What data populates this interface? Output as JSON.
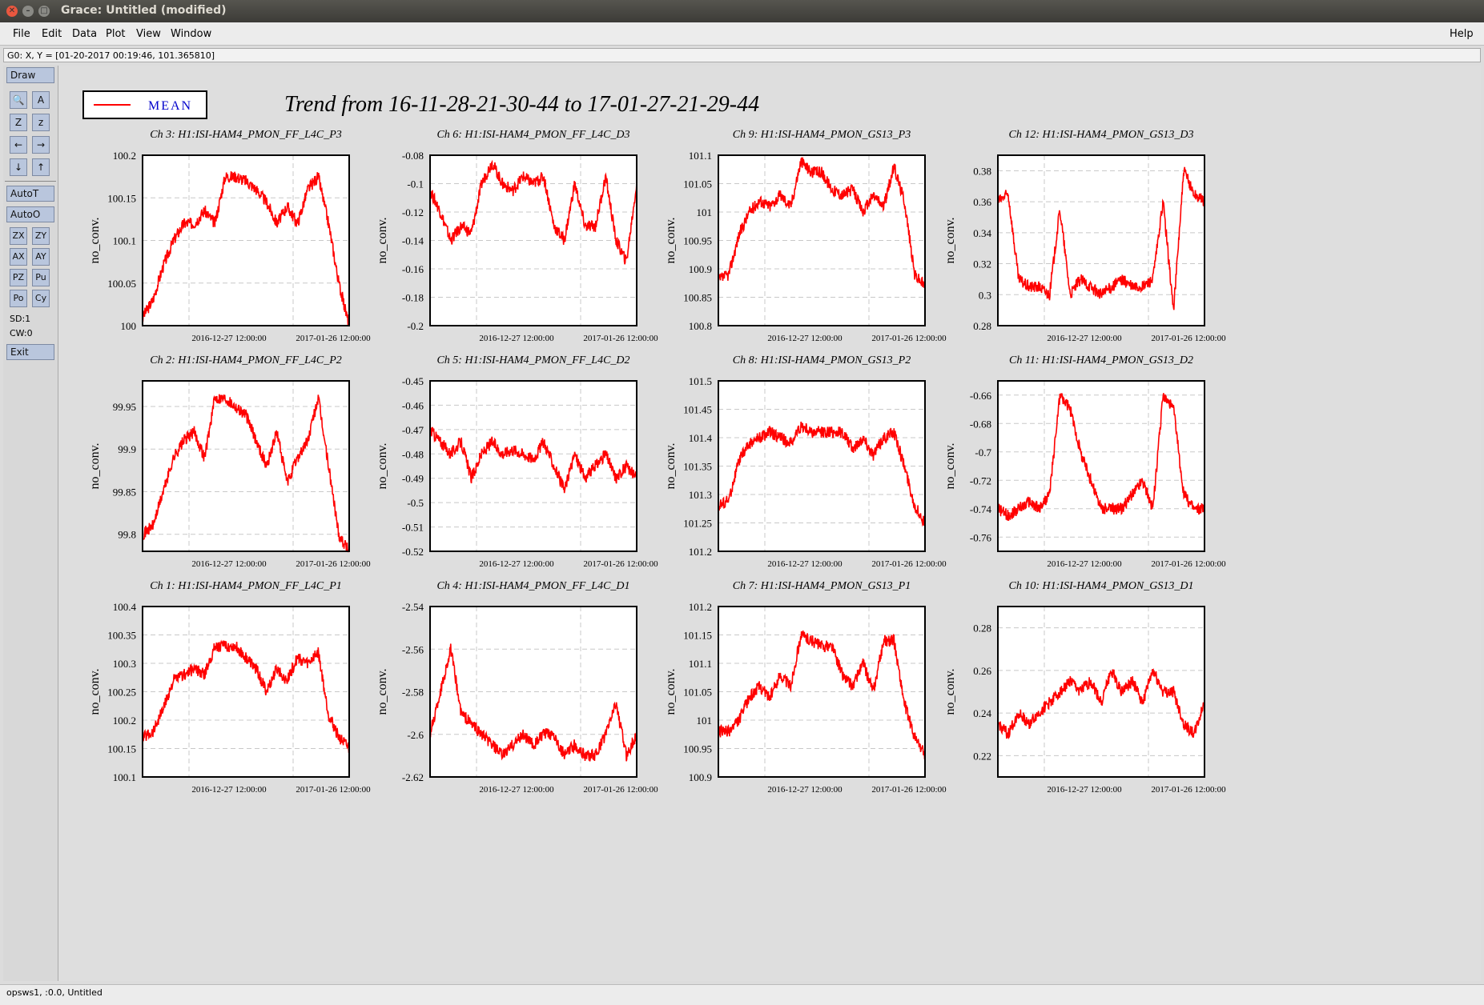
{
  "window": {
    "title": "Grace: Untitled (modified)"
  },
  "menu": {
    "items": [
      "File",
      "Edit",
      "Data",
      "Plot",
      "View",
      "Window"
    ],
    "help": "Help"
  },
  "locator": "G0: X, Y = [01-20-2017 00:19:46, 101.365810]",
  "toolbox": {
    "draw": "Draw",
    "autot": "AutoT",
    "autoo": "AutoO",
    "zoom_buttons": [
      [
        "ZX",
        "ZY"
      ],
      [
        "AX",
        "AY"
      ],
      [
        "PZ",
        "Pu"
      ],
      [
        "Po",
        "Cy"
      ]
    ],
    "sd": "SD:1",
    "cw": "CW:0",
    "exit": "Exit"
  },
  "status": "opsws1, :0.0, Untitled",
  "legend": {
    "label": "MEAN",
    "line_color": "#ff0000",
    "text_color": "#0000cc"
  },
  "page_title": "Trend from 16-11-28-21-30-44 to 17-01-27-21-29-44",
  "colors": {
    "series": "#ff0000"
  },
  "chart_data": [
    {
      "type": "line",
      "title": "Ch 3: H1:ISI-HAM4_PMON_FF_L4C_P3",
      "ylabel": "no_conv.",
      "ylim": [
        100,
        100.2
      ],
      "yticks": [
        "100",
        "100.05",
        "100.1",
        "100.15",
        "100.2"
      ],
      "xticks": [
        "2016-12-27 12:00:00",
        "2017-01-26 12:00:00"
      ],
      "series": [
        {
          "values": [
            100.01,
            100.03,
            100.07,
            100.1,
            100.12,
            100.12,
            100.135,
            100.12,
            100.175,
            100.175,
            100.17,
            100.16,
            100.145,
            100.12,
            100.14,
            100.12,
            100.16,
            100.175,
            100.12,
            100.05,
            100.0
          ]
        }
      ]
    },
    {
      "type": "line",
      "title": "Ch 6: H1:ISI-HAM4_PMON_FF_L4C_D3",
      "ylabel": "no_conv.",
      "ylim": [
        -0.2,
        -0.08
      ],
      "yticks": [
        "-0.2",
        "-0.18",
        "-0.16",
        "-0.14",
        "-0.12",
        "-0.1",
        "-0.08"
      ],
      "xticks": [
        "2016-12-27 12:00:00",
        "2017-01-26 12:00:00"
      ],
      "series": [
        {
          "values": [
            -0.105,
            -0.12,
            -0.14,
            -0.13,
            -0.135,
            -0.1,
            -0.085,
            -0.1,
            -0.105,
            -0.095,
            -0.1,
            -0.095,
            -0.13,
            -0.14,
            -0.1,
            -0.13,
            -0.13,
            -0.095,
            -0.14,
            -0.155,
            -0.1
          ]
        }
      ]
    },
    {
      "type": "line",
      "title": "Ch 9: H1:ISI-HAM4_PMON_GS13_P3",
      "ylabel": "no_conv.",
      "ylim": [
        100.8,
        101.1
      ],
      "yticks": [
        "100.8",
        "100.85",
        "100.9",
        "100.95",
        "101",
        "101.05",
        "101.1"
      ],
      "xticks": [
        "2016-12-27 12:00:00",
        "2017-01-26 12:00:00"
      ],
      "series": [
        {
          "values": [
            100.88,
            100.89,
            100.96,
            101.0,
            101.02,
            101.01,
            101.03,
            101.01,
            101.09,
            101.07,
            101.07,
            101.04,
            101.03,
            101.04,
            101.0,
            101.03,
            101.01,
            101.08,
            101.02,
            100.89,
            100.87
          ]
        }
      ]
    },
    {
      "type": "line",
      "title": "Ch 12: H1:ISI-HAM4_PMON_GS13_D3",
      "ylabel": "no_conv.",
      "ylim": [
        0.28,
        0.39
      ],
      "yticks": [
        "0.28",
        "0.3",
        "0.32",
        "0.34",
        "0.36",
        "0.38"
      ],
      "xticks": [
        "2016-12-27 12:00:00",
        "2017-01-26 12:00:00"
      ],
      "series": [
        {
          "values": [
            0.36,
            0.365,
            0.31,
            0.305,
            0.305,
            0.3,
            0.355,
            0.3,
            0.31,
            0.305,
            0.3,
            0.305,
            0.31,
            0.305,
            0.305,
            0.31,
            0.36,
            0.29,
            0.38,
            0.365,
            0.36
          ]
        }
      ]
    },
    {
      "type": "line",
      "title": "Ch 2: H1:ISI-HAM4_PMON_FF_L4C_P2",
      "ylabel": "no_conv.",
      "ylim": [
        99.78,
        99.98
      ],
      "yticks": [
        "99.8",
        "99.85",
        "99.9",
        "99.95"
      ],
      "xticks": [
        "2016-12-27 12:00:00",
        "2017-01-26 12:00:00"
      ],
      "series": [
        {
          "values": [
            99.8,
            99.81,
            99.85,
            99.89,
            99.91,
            99.92,
            99.89,
            99.96,
            99.96,
            99.95,
            99.94,
            99.91,
            99.88,
            99.92,
            99.86,
            99.89,
            99.91,
            99.96,
            99.88,
            99.8,
            99.78
          ]
        }
      ]
    },
    {
      "type": "line",
      "title": "Ch 5: H1:ISI-HAM4_PMON_FF_L4C_D2",
      "ylabel": "no_conv.",
      "ylim": [
        -0.52,
        -0.45
      ],
      "yticks": [
        "-0.52",
        "-0.51",
        "-0.5",
        "-0.49",
        "-0.48",
        "-0.47",
        "-0.46",
        "-0.45"
      ],
      "xticks": [
        "2016-12-27 12:00:00",
        "2017-01-26 12:00:00"
      ],
      "series": [
        {
          "values": [
            -0.47,
            -0.475,
            -0.48,
            -0.475,
            -0.49,
            -0.48,
            -0.475,
            -0.48,
            -0.478,
            -0.48,
            -0.482,
            -0.475,
            -0.485,
            -0.495,
            -0.48,
            -0.49,
            -0.485,
            -0.48,
            -0.49,
            -0.485,
            -0.49
          ]
        }
      ]
    },
    {
      "type": "line",
      "title": "Ch 8: H1:ISI-HAM4_PMON_GS13_P2",
      "ylabel": "no_conv.",
      "ylim": [
        101.2,
        101.5
      ],
      "yticks": [
        "101.2",
        "101.25",
        "101.3",
        "101.35",
        "101.4",
        "101.45",
        "101.5"
      ],
      "xticks": [
        "2016-12-27 12:00:00",
        "2017-01-26 12:00:00"
      ],
      "series": [
        {
          "values": [
            101.28,
            101.29,
            101.36,
            101.39,
            101.4,
            101.41,
            101.4,
            101.39,
            101.42,
            101.41,
            101.41,
            101.41,
            101.41,
            101.38,
            101.4,
            101.37,
            101.4,
            101.41,
            101.35,
            101.28,
            101.25
          ]
        }
      ]
    },
    {
      "type": "line",
      "title": "Ch 11: H1:ISI-HAM4_PMON_GS13_D2",
      "ylabel": "no_conv.",
      "ylim": [
        -0.77,
        -0.65
      ],
      "yticks": [
        "-0.76",
        "-0.74",
        "-0.72",
        "-0.7",
        "-0.68",
        "-0.66"
      ],
      "xticks": [
        "2016-12-27 12:00:00",
        "2017-01-26 12:00:00"
      ],
      "series": [
        {
          "values": [
            -0.74,
            -0.745,
            -0.74,
            -0.735,
            -0.74,
            -0.73,
            -0.66,
            -0.67,
            -0.7,
            -0.72,
            -0.74,
            -0.74,
            -0.74,
            -0.73,
            -0.72,
            -0.74,
            -0.66,
            -0.67,
            -0.73,
            -0.74,
            -0.74
          ]
        }
      ]
    },
    {
      "type": "line",
      "title": "Ch 1: H1:ISI-HAM4_PMON_FF_L4C_P1",
      "ylabel": "no_conv.",
      "ylim": [
        100.1,
        100.4
      ],
      "yticks": [
        "100.1",
        "100.15",
        "100.2",
        "100.25",
        "100.3",
        "100.35",
        "100.4"
      ],
      "xticks": [
        "2016-12-27 12:00:00",
        "2017-01-26 12:00:00"
      ],
      "series": [
        {
          "values": [
            100.17,
            100.18,
            100.22,
            100.27,
            100.28,
            100.29,
            100.28,
            100.33,
            100.33,
            100.33,
            100.31,
            100.29,
            100.25,
            100.29,
            100.27,
            100.31,
            100.3,
            100.32,
            100.21,
            100.17,
            100.15
          ]
        }
      ]
    },
    {
      "type": "line",
      "title": "Ch 4: H1:ISI-HAM4_PMON_FF_L4C_D1",
      "ylabel": "no_conv.",
      "ylim": [
        -2.62,
        -2.54
      ],
      "yticks": [
        "-2.62",
        "-2.6",
        "-2.58",
        "-2.56",
        "-2.54"
      ],
      "xticks": [
        "2016-12-27 12:00:00",
        "2017-01-26 12:00:00"
      ],
      "series": [
        {
          "values": [
            -2.6,
            -2.58,
            -2.56,
            -2.59,
            -2.595,
            -2.6,
            -2.605,
            -2.61,
            -2.605,
            -2.6,
            -2.605,
            -2.6,
            -2.6,
            -2.61,
            -2.605,
            -2.61,
            -2.61,
            -2.6,
            -2.585,
            -2.61,
            -2.6
          ]
        }
      ]
    },
    {
      "type": "line",
      "title": "Ch 7: H1:ISI-HAM4_PMON_GS13_P1",
      "ylabel": "no_conv.",
      "ylim": [
        100.9,
        101.2
      ],
      "yticks": [
        "100.9",
        "100.95",
        "101",
        "101.05",
        "101.1",
        "101.15",
        "101.2"
      ],
      "xticks": [
        "2016-12-27 12:00:00",
        "2017-01-26 12:00:00"
      ],
      "series": [
        {
          "values": [
            100.98,
            100.98,
            101.0,
            101.04,
            101.06,
            101.04,
            101.08,
            101.06,
            101.15,
            101.14,
            101.13,
            101.13,
            101.08,
            101.06,
            101.1,
            101.05,
            101.14,
            101.14,
            101.03,
            100.97,
            100.94
          ]
        }
      ]
    },
    {
      "type": "line",
      "title": "Ch 10: H1:ISI-HAM4_PMON_GS13_D1",
      "ylabel": "no_conv.",
      "ylim": [
        0.21,
        0.29
      ],
      "yticks": [
        "0.22",
        "0.24",
        "0.26",
        "0.28"
      ],
      "xticks": [
        "2016-12-27 12:00:00",
        "2017-01-26 12:00:00"
      ],
      "series": [
        {
          "values": [
            0.235,
            0.23,
            0.24,
            0.235,
            0.24,
            0.245,
            0.25,
            0.255,
            0.25,
            0.255,
            0.245,
            0.26,
            0.25,
            0.255,
            0.245,
            0.26,
            0.25,
            0.25,
            0.235,
            0.23,
            0.245
          ]
        }
      ]
    }
  ]
}
